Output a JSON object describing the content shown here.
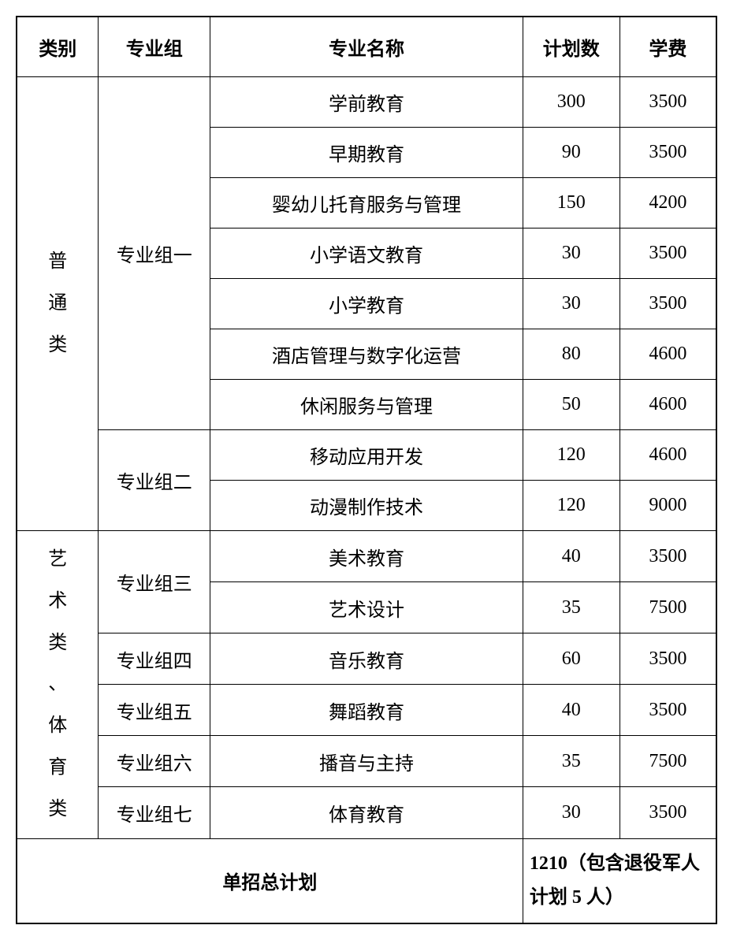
{
  "headers": {
    "category": "类别",
    "group": "专业组",
    "major": "专业名称",
    "plan": "计划数",
    "fee": "学费"
  },
  "categories": {
    "general": "普\n通\n类",
    "art_sports": "艺\n术\n类\n、\n体\n育\n类"
  },
  "groups": {
    "g1": "专业组一",
    "g2": "专业组二",
    "g3": "专业组三",
    "g4": "专业组四",
    "g5": "专业组五",
    "g6": "专业组六",
    "g7": "专业组七"
  },
  "rows": {
    "r1": {
      "major": "学前教育",
      "plan": "300",
      "fee": "3500"
    },
    "r2": {
      "major": "早期教育",
      "plan": "90",
      "fee": "3500"
    },
    "r3": {
      "major": "婴幼儿托育服务与管理",
      "plan": "150",
      "fee": "4200"
    },
    "r4": {
      "major": "小学语文教育",
      "plan": "30",
      "fee": "3500"
    },
    "r5": {
      "major": "小学教育",
      "plan": "30",
      "fee": "3500"
    },
    "r6": {
      "major": "酒店管理与数字化运营",
      "plan": "80",
      "fee": "4600"
    },
    "r7": {
      "major": "休闲服务与管理",
      "plan": "50",
      "fee": "4600"
    },
    "r8": {
      "major": "移动应用开发",
      "plan": "120",
      "fee": "4600"
    },
    "r9": {
      "major": "动漫制作技术",
      "plan": "120",
      "fee": "9000"
    },
    "r10": {
      "major": "美术教育",
      "plan": "40",
      "fee": "3500"
    },
    "r11": {
      "major": "艺术设计",
      "plan": "35",
      "fee": "7500"
    },
    "r12": {
      "major": "音乐教育",
      "plan": "60",
      "fee": "3500"
    },
    "r13": {
      "major": "舞蹈教育",
      "plan": "40",
      "fee": "3500"
    },
    "r14": {
      "major": "播音与主持",
      "plan": "35",
      "fee": "7500"
    },
    "r15": {
      "major": "体育教育",
      "plan": "30",
      "fee": "3500"
    }
  },
  "footer": {
    "label": "单招总计划",
    "value": "1210（包含退役军人计划 5 人）"
  }
}
